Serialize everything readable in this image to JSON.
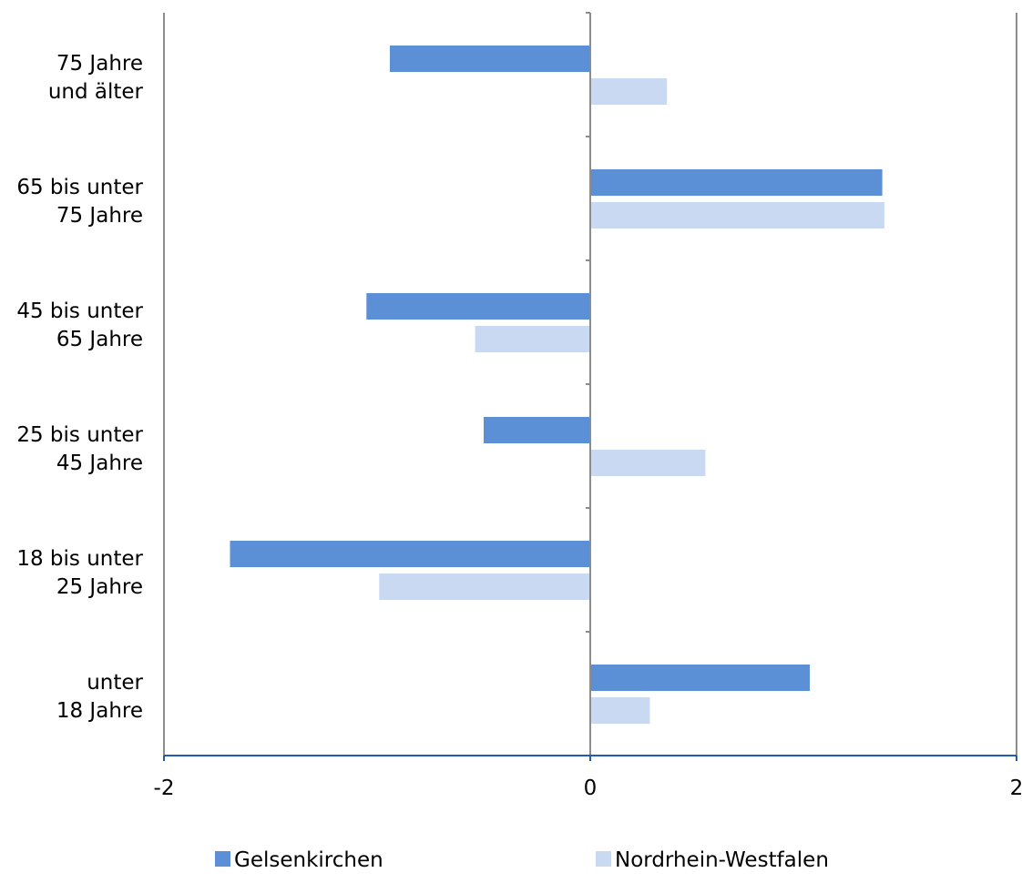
{
  "chart_data": {
    "type": "bar",
    "orientation": "horizontal",
    "categories": [
      [
        "75 Jahre",
        "und älter"
      ],
      [
        "65 bis unter",
        "75 Jahre"
      ],
      [
        "45 bis unter",
        "65 Jahre"
      ],
      [
        "25 bis unter",
        "45 Jahre"
      ],
      [
        "18 bis unter",
        "25 Jahre"
      ],
      [
        "unter",
        "18 Jahre"
      ]
    ],
    "series": [
      {
        "name": "Gelsenkirchen",
        "color": "#5b8fd6",
        "values": [
          -0.94,
          1.37,
          -1.05,
          -0.5,
          -1.69,
          1.03
        ]
      },
      {
        "name": "Nordrhein-Westfalen",
        "color": "#c8d9f1",
        "values": [
          0.36,
          1.38,
          -0.54,
          0.54,
          -0.99,
          0.28
        ]
      }
    ],
    "xlim": [
      -2,
      2
    ],
    "xticks": [
      "-2",
      "0",
      "2"
    ],
    "grid": false,
    "legend_position": "bottom"
  }
}
